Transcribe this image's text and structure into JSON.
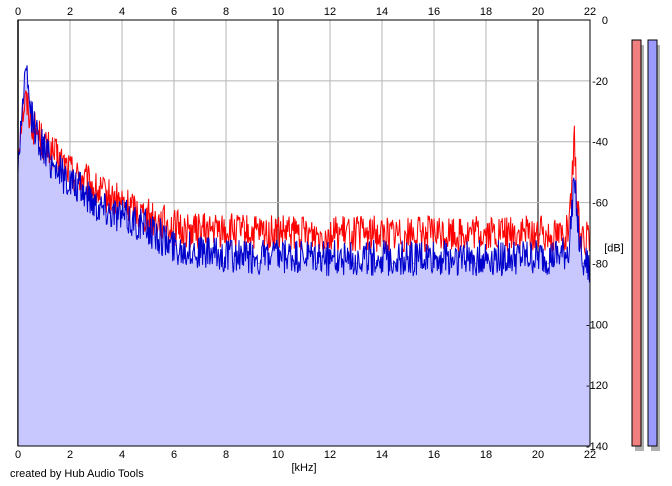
{
  "chart_data": {
    "type": "area",
    "xlabel": "[kHz]",
    "ylabel": "[dB]",
    "xlim": [
      0,
      22
    ],
    "ylim": [
      -140,
      0
    ],
    "x_ticks": [
      0,
      2,
      4,
      6,
      8,
      10,
      12,
      14,
      16,
      18,
      20,
      22
    ],
    "y_ticks": [
      0,
      -20,
      -40,
      -60,
      -80,
      -100,
      -120,
      -140
    ],
    "grid": true,
    "series": [
      {
        "color": "#ff0000",
        "x": [
          0,
          0.15,
          0.3,
          0.45,
          0.6,
          0.8,
          1.0,
          1.25,
          1.5,
          1.75,
          2.0,
          2.25,
          2.5,
          2.75,
          3.0,
          3.25,
          3.5,
          3.75,
          4.0,
          4.25,
          4.5,
          4.75,
          5.0,
          5.25,
          5.5,
          5.75,
          6.0,
          6.5,
          7.0,
          7.5,
          8.0,
          9.0,
          10.0,
          11.0,
          12.0,
          13.0,
          14.0,
          15.0,
          16.0,
          17.0,
          18.0,
          19.0,
          20.0,
          20.5,
          21.0,
          21.2,
          21.3,
          21.4,
          21.5,
          21.6,
          21.8,
          22.0
        ],
        "values": [
          -42,
          -30,
          -25,
          -30,
          -34,
          -36,
          -40,
          -42,
          -44,
          -46,
          -48,
          -50,
          -51,
          -53,
          -55,
          -56,
          -57,
          -58,
          -59,
          -60,
          -61,
          -62,
          -63,
          -64,
          -65,
          -66,
          -67,
          -68,
          -68,
          -68,
          -68,
          -69,
          -69,
          -69,
          -69,
          -69,
          -69,
          -69,
          -69,
          -69,
          -69,
          -69,
          -69,
          -69,
          -69,
          -68,
          -55,
          -38,
          -60,
          -68,
          -70,
          -72
        ]
      },
      {
        "color": "#0000cc",
        "x": [
          0,
          0.15,
          0.3,
          0.45,
          0.6,
          0.8,
          1.0,
          1.25,
          1.5,
          1.75,
          2.0,
          2.25,
          2.5,
          2.75,
          3.0,
          3.25,
          3.5,
          3.75,
          4.0,
          4.25,
          4.5,
          4.75,
          5.0,
          5.25,
          5.5,
          5.75,
          6.0,
          6.5,
          7.0,
          7.5,
          8.0,
          9.0,
          10.0,
          11.0,
          12.0,
          13.0,
          14.0,
          15.0,
          16.0,
          17.0,
          18.0,
          19.0,
          20.0,
          20.5,
          21.0,
          21.2,
          21.3,
          21.4,
          21.5,
          21.6,
          21.8,
          22.0
        ],
        "values": [
          -48,
          -28,
          -16,
          -27,
          -33,
          -38,
          -41,
          -45,
          -47,
          -50,
          -52,
          -54,
          -55,
          -57,
          -59,
          -60,
          -61,
          -62,
          -63,
          -64,
          -65,
          -66,
          -67,
          -69,
          -70,
          -72,
          -73,
          -74,
          -75,
          -76,
          -76,
          -77,
          -77,
          -77,
          -77,
          -77,
          -77,
          -77,
          -77,
          -77,
          -77,
          -77,
          -77,
          -77,
          -76,
          -74,
          -62,
          -46,
          -64,
          -74,
          -78,
          -82
        ]
      }
    ],
    "level_meters": [
      {
        "color": "#f08080",
        "value": 1
      },
      {
        "color": "#9b9bff",
        "value": 1
      }
    ]
  },
  "footer": {
    "credit": "created by Hub Audio Tools"
  }
}
